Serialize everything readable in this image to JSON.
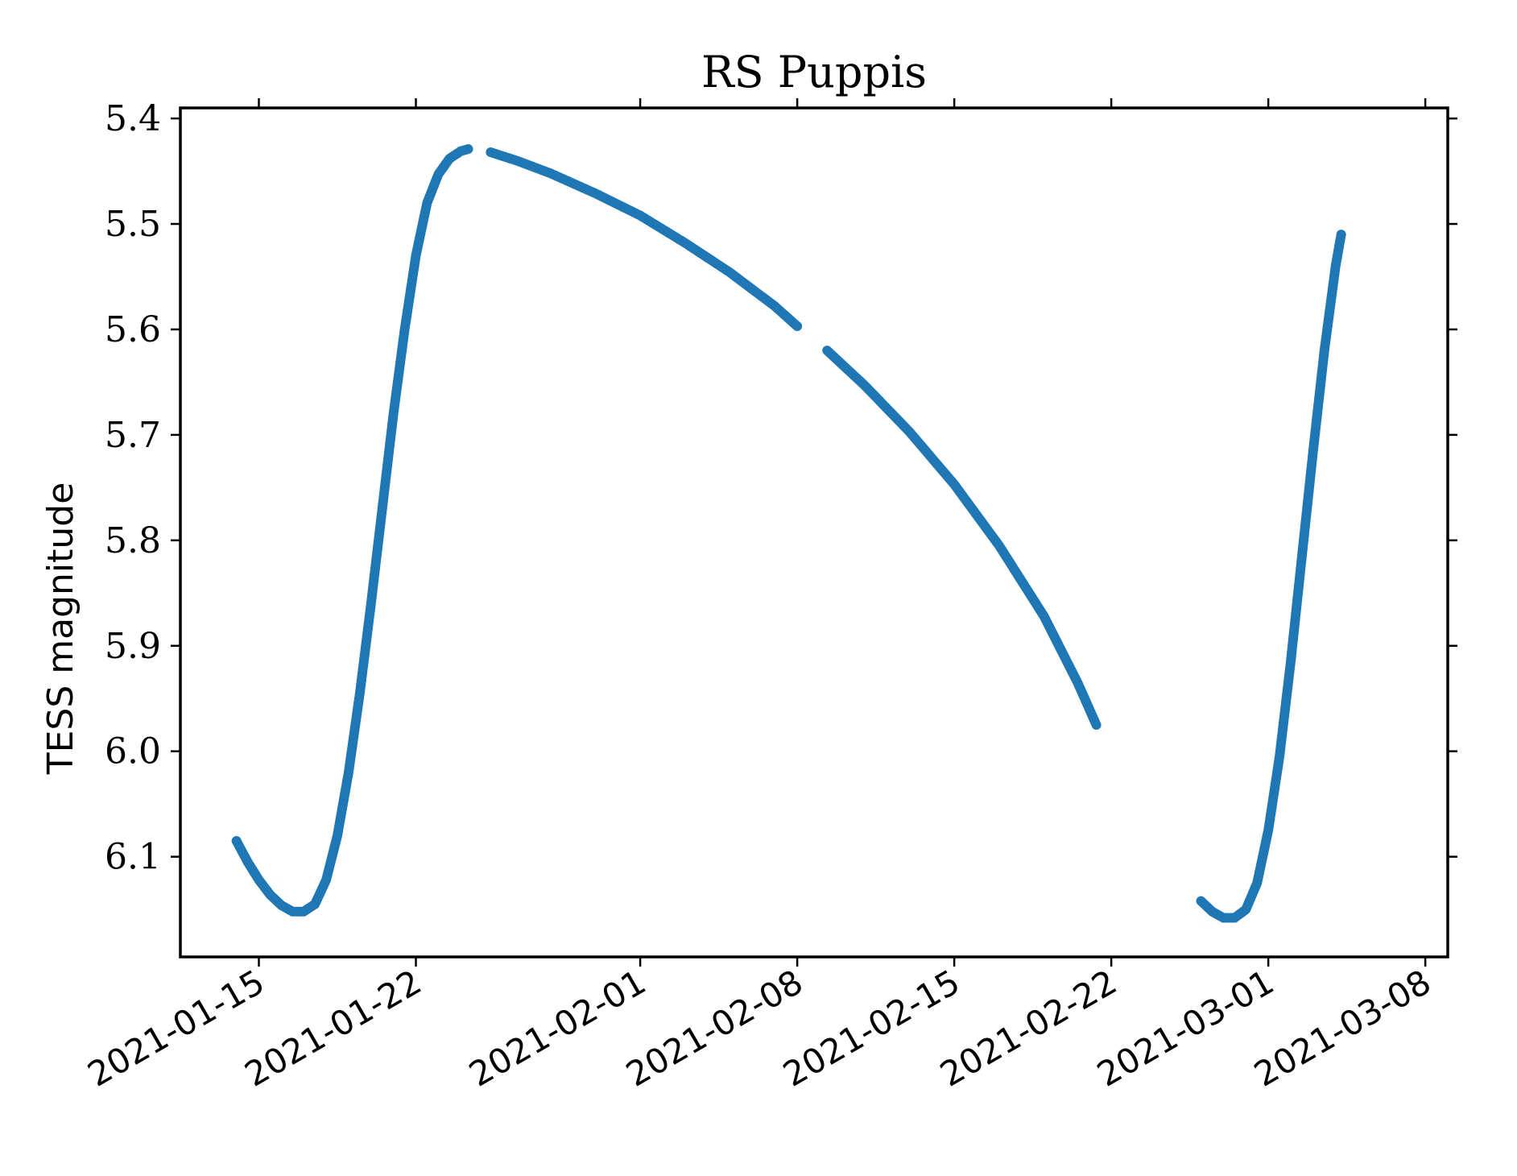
{
  "chart_data": {
    "type": "scatter",
    "title": "RS Puppis",
    "xlabel": "",
    "ylabel": "TESS magnitude",
    "y_inverted": true,
    "ylim": [
      6.195,
      5.39
    ],
    "xlim": [
      "2021-01-11T12:00",
      "2021-03-09T00:00"
    ],
    "x_ticks": [
      "2021-01-15",
      "2021-01-22",
      "2021-02-01",
      "2021-02-08",
      "2021-02-15",
      "2021-02-22",
      "2021-03-01",
      "2021-03-08"
    ],
    "y_ticks": [
      "5.4",
      "5.5",
      "5.6",
      "5.7",
      "5.8",
      "5.9",
      "6.0",
      "6.1"
    ],
    "grid": false,
    "marker_color": "#1f77b4",
    "series": [
      {
        "segments": [
          [
            [
              "2021-01-14T00:00",
              6.085
            ],
            [
              "2021-01-14T12:00",
              6.105
            ],
            [
              "2021-01-15T00:00",
              6.122
            ],
            [
              "2021-01-15T12:00",
              6.136
            ],
            [
              "2021-01-16T00:00",
              6.146
            ],
            [
              "2021-01-16T12:00",
              6.152
            ],
            [
              "2021-01-17T00:00",
              6.152
            ],
            [
              "2021-01-17T12:00",
              6.145
            ],
            [
              "2021-01-18T00:00",
              6.122
            ],
            [
              "2021-01-18T12:00",
              6.08
            ],
            [
              "2021-01-19T00:00",
              6.02
            ],
            [
              "2021-01-19T12:00",
              5.945
            ],
            [
              "2021-01-20T00:00",
              5.86
            ],
            [
              "2021-01-20T12:00",
              5.77
            ],
            [
              "2021-01-21T00:00",
              5.68
            ],
            [
              "2021-01-21T12:00",
              5.6
            ],
            [
              "2021-01-22T00:00",
              5.53
            ],
            [
              "2021-01-22T12:00",
              5.48
            ],
            [
              "2021-01-23T00:00",
              5.453
            ],
            [
              "2021-01-23T12:00",
              5.438
            ],
            [
              "2021-01-24T00:00",
              5.431
            ],
            [
              "2021-01-24T08:00",
              5.429
            ]
          ],
          [
            [
              "2021-01-25T08:00",
              5.432
            ],
            [
              "2021-01-26T12:00",
              5.44
            ],
            [
              "2021-01-28T00:00",
              5.452
            ],
            [
              "2021-01-30T00:00",
              5.471
            ],
            [
              "2021-02-01T00:00",
              5.492
            ],
            [
              "2021-02-03T00:00",
              5.518
            ],
            [
              "2021-02-05T00:00",
              5.546
            ],
            [
              "2021-02-07T00:00",
              5.578
            ],
            [
              "2021-02-08T00:00",
              5.597
            ]
          ],
          [
            [
              "2021-02-09T08:00",
              5.62
            ],
            [
              "2021-02-11T00:00",
              5.653
            ],
            [
              "2021-02-13T00:00",
              5.697
            ],
            [
              "2021-02-15T00:00",
              5.747
            ],
            [
              "2021-02-17T00:00",
              5.805
            ],
            [
              "2021-02-19T00:00",
              5.872
            ],
            [
              "2021-02-20T12:00",
              5.935
            ],
            [
              "2021-02-21T08:00",
              5.975
            ]
          ],
          [
            [
              "2021-02-26T00:00",
              6.142
            ],
            [
              "2021-02-26T12:00",
              6.152
            ],
            [
              "2021-02-27T00:00",
              6.158
            ],
            [
              "2021-02-27T12:00",
              6.158
            ],
            [
              "2021-02-28T00:00",
              6.15
            ],
            [
              "2021-02-28T12:00",
              6.125
            ],
            [
              "2021-03-01T00:00",
              6.075
            ],
            [
              "2021-03-01T12:00",
              6.005
            ],
            [
              "2021-03-02T00:00",
              5.915
            ],
            [
              "2021-03-02T12:00",
              5.815
            ],
            [
              "2021-03-03T00:00",
              5.715
            ],
            [
              "2021-03-03T12:00",
              5.62
            ],
            [
              "2021-03-04T00:00",
              5.54
            ],
            [
              "2021-03-04T06:00",
              5.51
            ]
          ]
        ]
      }
    ]
  }
}
